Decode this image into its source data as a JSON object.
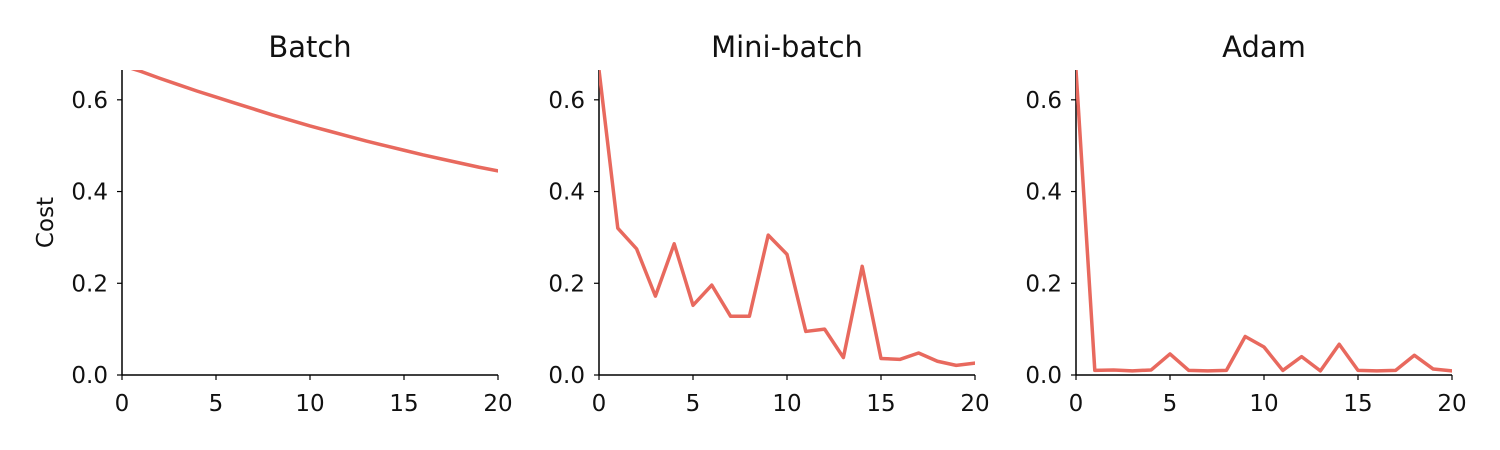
{
  "line_color": "#e8695e",
  "chart_data": [
    {
      "type": "line",
      "title": "Batch",
      "xlabel": "",
      "ylabel": "Cost",
      "xlim": [
        0,
        20
      ],
      "ylim": [
        0,
        0.665
      ],
      "xticks": [
        "0",
        "5",
        "10",
        "15",
        "20"
      ],
      "yticks": [
        "0.0",
        "0.2",
        "0.4",
        "0.6"
      ],
      "grid": false,
      "x": [
        0,
        1,
        2,
        3,
        4,
        5,
        6,
        7,
        8,
        9,
        10,
        11,
        12,
        13,
        14,
        15,
        16,
        17,
        18,
        19,
        20
      ],
      "series": [
        {
          "values": [
            0.675,
            0.662,
            0.647,
            0.633,
            0.619,
            0.606,
            0.593,
            0.58,
            0.567,
            0.555,
            0.543,
            0.532,
            0.521,
            0.51,
            0.5,
            0.49,
            0.48,
            0.471,
            0.462,
            0.453,
            0.445
          ]
        }
      ]
    },
    {
      "type": "line",
      "title": "Mini-batch",
      "xlabel": "",
      "ylabel": "",
      "xlim": [
        0,
        20
      ],
      "ylim": [
        0,
        0.665
      ],
      "xticks": [
        "0",
        "5",
        "10",
        "15",
        "20"
      ],
      "yticks": [
        "0.0",
        "0.2",
        "0.4",
        "0.6"
      ],
      "grid": false,
      "x": [
        0,
        1,
        2,
        3,
        4,
        5,
        6,
        7,
        8,
        9,
        10,
        11,
        12,
        13,
        14,
        15,
        16,
        17,
        18,
        19,
        20
      ],
      "series": [
        {
          "values": [
            0.665,
            0.32,
            0.275,
            0.172,
            0.286,
            0.152,
            0.196,
            0.128,
            0.128,
            0.305,
            0.263,
            0.095,
            0.1,
            0.038,
            0.237,
            0.036,
            0.034,
            0.048,
            0.03,
            0.021,
            0.026
          ]
        }
      ]
    },
    {
      "type": "line",
      "title": "Adam",
      "xlabel": "",
      "ylabel": "",
      "xlim": [
        0,
        20
      ],
      "ylim": [
        0,
        0.665
      ],
      "xticks": [
        "0",
        "5",
        "10",
        "15",
        "20"
      ],
      "yticks": [
        "0.0",
        "0.2",
        "0.4",
        "0.6"
      ],
      "grid": false,
      "x": [
        0,
        1,
        2,
        3,
        4,
        5,
        6,
        7,
        8,
        9,
        10,
        11,
        12,
        13,
        14,
        15,
        16,
        17,
        18,
        19,
        20
      ],
      "series": [
        {
          "values": [
            0.665,
            0.01,
            0.011,
            0.009,
            0.011,
            0.046,
            0.01,
            0.009,
            0.01,
            0.084,
            0.061,
            0.01,
            0.04,
            0.009,
            0.067,
            0.01,
            0.009,
            0.01,
            0.043,
            0.013,
            0.009
          ]
        }
      ]
    }
  ]
}
